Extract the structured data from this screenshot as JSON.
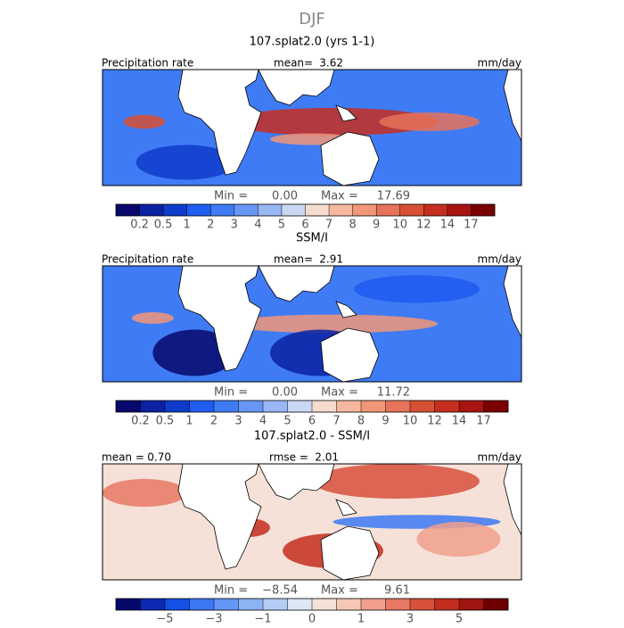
{
  "title": "DJF",
  "panels": [
    {
      "title": "107.splat2.0 (yrs 1-1)",
      "left_label": "Precipitation rate",
      "stats": [
        {
          "label": "mean=",
          "value": "3.62"
        }
      ],
      "units": "mm/day",
      "min_label": "Min =",
      "min": "0.00",
      "max_label": "Max =",
      "max": "17.69",
      "colorbar": {
        "colors": [
          "#07086b",
          "#0b22a3",
          "#0f3ccb",
          "#1f5cf0",
          "#3f7bf5",
          "#6796f5",
          "#99b6f5",
          "#cad8f4",
          "#f6dccf",
          "#f5b89f",
          "#f19678",
          "#e6735a",
          "#d75033",
          "#c62e1f",
          "#a81410",
          "#7a0000"
        ],
        "labels": [
          "0.2",
          "0.5",
          "1",
          "2",
          "3",
          "4",
          "5",
          "6",
          "7",
          "8",
          "9",
          "10",
          "12",
          "14",
          "17"
        ]
      }
    },
    {
      "title": "SSM/I",
      "left_label": "Precipitation rate",
      "stats": [
        {
          "label": "mean=",
          "value": "2.91"
        }
      ],
      "units": "mm/day",
      "min_label": "Min =",
      "min": "0.00",
      "max_label": "Max =",
      "max": "11.72",
      "colorbar": {
        "colors": [
          "#07086b",
          "#0b22a3",
          "#0f3ccb",
          "#1f5cf0",
          "#3f7bf5",
          "#6796f5",
          "#99b6f5",
          "#cad8f4",
          "#f6dccf",
          "#f5b89f",
          "#f19678",
          "#e6735a",
          "#d75033",
          "#c62e1f",
          "#a81410",
          "#7a0000"
        ],
        "labels": [
          "0.2",
          "0.5",
          "1",
          "2",
          "3",
          "4",
          "5",
          "6",
          "7",
          "8",
          "9",
          "10",
          "12",
          "14",
          "17"
        ]
      }
    },
    {
      "title": "107.splat2.0 - SSM/I",
      "stats": [
        {
          "label": "mean =",
          "value": "0.70"
        },
        {
          "label": "rmse =",
          "value": "2.01"
        }
      ],
      "units": "mm/day",
      "min_label": "Min =",
      "min": "−8.54",
      "max_label": "Max =",
      "max": "9.61",
      "colorbar": {
        "colors": [
          "#07086b",
          "#0b28b2",
          "#1450e6",
          "#3c78f5",
          "#6496f5",
          "#8cb4f5",
          "#b4cdf5",
          "#dce6f5",
          "#f5e1d7",
          "#f5c8b4",
          "#f0a08c",
          "#e67864",
          "#d7503c",
          "#c32d1e",
          "#a01410",
          "#6e0000"
        ],
        "labels": [
          null,
          "−5",
          null,
          "−3",
          null,
          "−1",
          null,
          "0",
          null,
          "1",
          null,
          "3",
          null,
          "5",
          null
        ]
      }
    }
  ]
}
